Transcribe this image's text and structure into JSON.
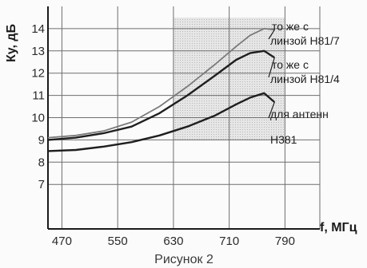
{
  "caption": "Рисунок 2",
  "chart_data": {
    "type": "line",
    "xlabel": "f, МГц",
    "ylabel": "Ку, дБ",
    "xlim": [
      450,
      840
    ],
    "ylim": [
      5,
      15
    ],
    "x_ticks": [
      470,
      550,
      630,
      710,
      790
    ],
    "y_ticks": [
      7,
      8,
      9,
      10,
      11,
      12,
      13,
      14
    ],
    "grid": true,
    "shaded_band": {
      "x_from": 630,
      "x_to": 790,
      "y_from": 9,
      "y_to": 14.5
    },
    "series": [
      {
        "labels": [
          "то же с",
          "линзой H81/7"
        ],
        "color": "#7a7a7a",
        "x": [
          450,
          490,
          530,
          570,
          610,
          650,
          690,
          720,
          740,
          760,
          775
        ],
        "y": [
          9.1,
          9.2,
          9.4,
          9.8,
          10.5,
          11.4,
          12.4,
          13.2,
          13.7,
          14.0,
          13.95
        ]
      },
      {
        "labels": [
          "то же с",
          "линзой H81/4"
        ],
        "color": "#1f1f1f",
        "x": [
          450,
          490,
          530,
          570,
          610,
          650,
          690,
          720,
          740,
          760,
          775
        ],
        "y": [
          9.0,
          9.1,
          9.3,
          9.6,
          10.2,
          11.0,
          11.9,
          12.6,
          12.9,
          13.0,
          12.7
        ]
      },
      {
        "labels": [
          "для антенн",
          "H381"
        ],
        "color": "#1f1f1f",
        "x": [
          450,
          490,
          530,
          570,
          610,
          650,
          690,
          720,
          740,
          760,
          775
        ],
        "y": [
          8.5,
          8.55,
          8.7,
          8.9,
          9.2,
          9.6,
          10.1,
          10.6,
          10.9,
          11.1,
          10.7
        ]
      }
    ]
  }
}
